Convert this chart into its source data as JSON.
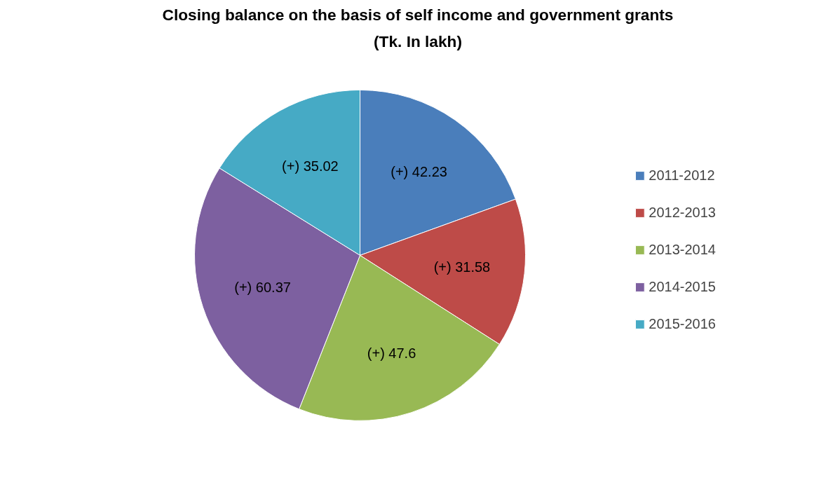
{
  "chart_data": {
    "type": "pie",
    "title": "Closing balance on the basis of self income and government grants",
    "subtitle": "(Tk. In lakh)",
    "categories": [
      "2011-2012",
      "2012-2013",
      "2013-2014",
      "2014-2015",
      "2015-2016"
    ],
    "values": [
      42.23,
      31.58,
      47.6,
      60.37,
      35.02
    ],
    "value_labels": [
      "(+) 42.23",
      "(+) 31.58",
      "(+) 47.6",
      "(+) 60.37",
      "(+) 35.02"
    ],
    "colors": [
      "#4a7ebb",
      "#be4b48",
      "#98b954",
      "#7d60a0",
      "#46aac5"
    ],
    "legend": "right"
  }
}
